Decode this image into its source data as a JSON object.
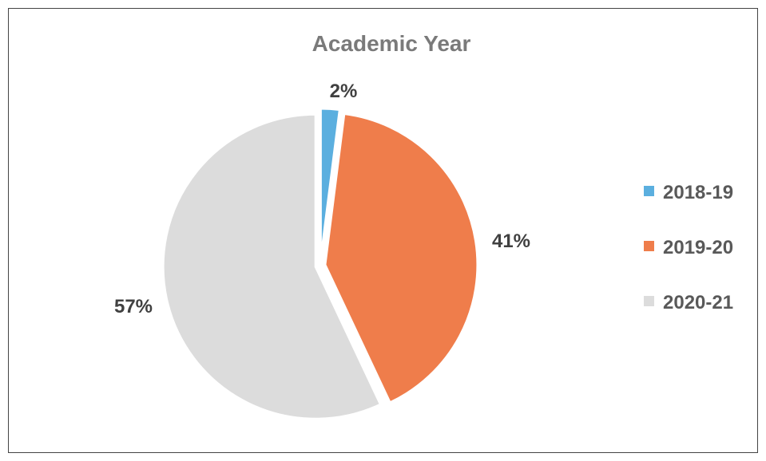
{
  "chart_data": {
    "type": "pie",
    "title": "Academic Year",
    "categories": [
      "2018-19",
      "2019-20",
      "2020-21"
    ],
    "values": [
      2,
      41,
      57
    ],
    "data_labels": [
      "2%",
      "41%",
      "57%"
    ],
    "colors": [
      "#5bafdf",
      "#ef7d4b",
      "#dcdcdc"
    ],
    "legend_position": "right",
    "exploded": true
  }
}
